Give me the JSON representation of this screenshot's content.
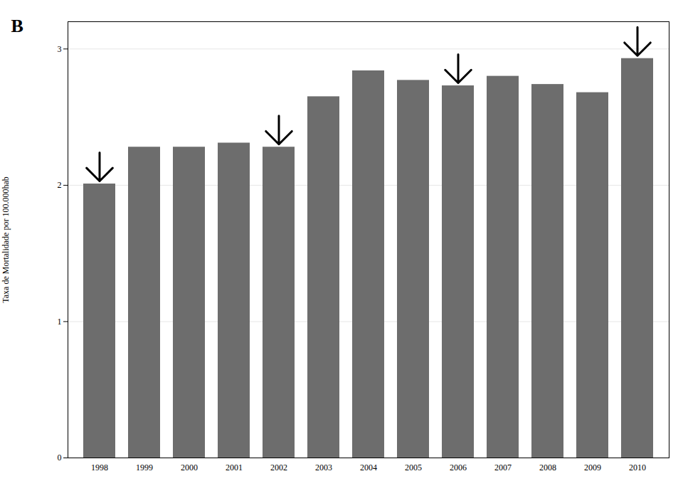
{
  "chart_data": {
    "type": "bar",
    "categories": [
      "1998",
      "1999",
      "2000",
      "2001",
      "2002",
      "2003",
      "2004",
      "2005",
      "2006",
      "2007",
      "2008",
      "2009",
      "2010"
    ],
    "values": [
      2.01,
      2.28,
      2.28,
      2.31,
      2.28,
      2.65,
      2.84,
      2.77,
      2.73,
      2.8,
      2.74,
      2.68,
      2.93
    ],
    "color": "#6d6d6d",
    "ylabel": "Taxa de Mortalidade por 100.000hab",
    "ylim": [
      0,
      3.2
    ],
    "yticks": [
      0,
      1,
      2,
      3
    ],
    "grid": true,
    "annotations": [
      "B"
    ],
    "arrows": [
      "1998",
      "2002",
      "2006",
      "2010"
    ]
  }
}
